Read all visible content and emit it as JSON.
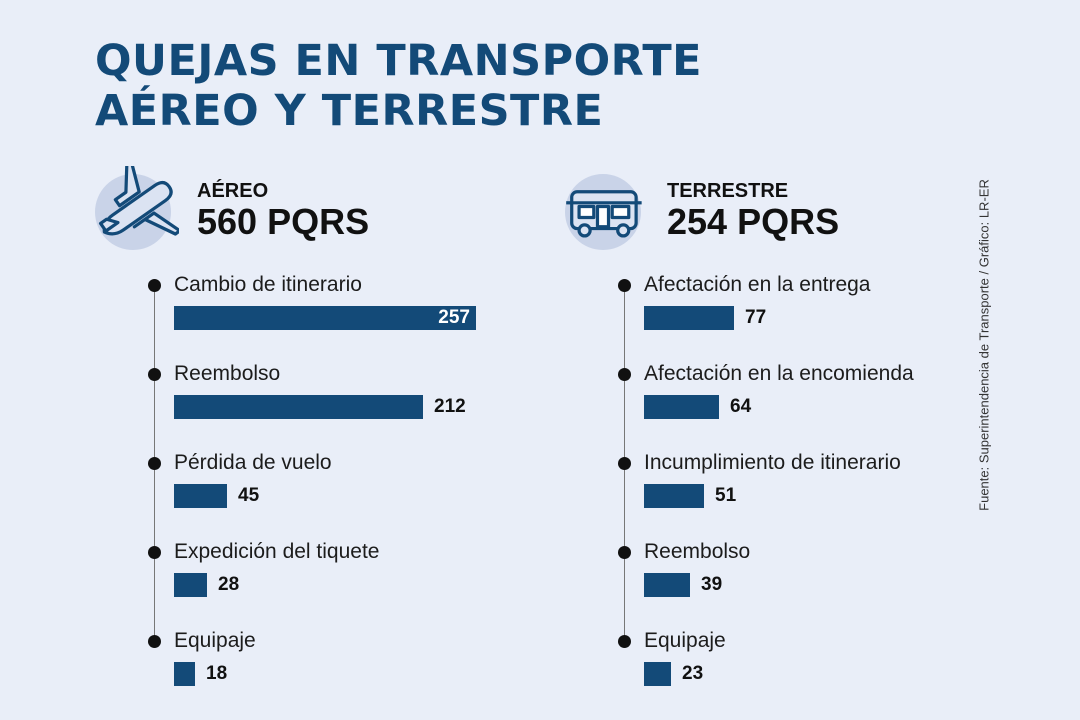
{
  "title": {
    "line1": "QUEJAS EN TRANSPORTE",
    "line2": "AÉREO Y TERRESTRE"
  },
  "source": "Fuente: Superintendencia de Transporte / Gráfico: LR-ER",
  "colors": {
    "bar": "#134a78",
    "background": "#e9eef8",
    "icon_circle": "#c9d3e8"
  },
  "panels": [
    {
      "label": "AÉREO",
      "total": "560 PQRS",
      "icon": "airplane-icon"
    },
    {
      "label": "TERRESTRE",
      "total": "254 PQRS",
      "icon": "bus-icon"
    }
  ],
  "chart_data": [
    {
      "type": "bar",
      "title": "AÉREO",
      "subtitle": "560 PQRS",
      "categories": [
        "Cambio de itinerario",
        "Reembolso",
        "Pérdida de vuelo",
        "Expedición del tiquete",
        "Equipaje"
      ],
      "values": [
        257,
        212,
        45,
        28,
        18
      ]
    },
    {
      "type": "bar",
      "title": "TERRESTRE",
      "subtitle": "254 PQRS",
      "categories": [
        "Afectación en la entrega",
        "Afectación en la encomienda",
        "Incumplimiento de itinerario",
        "Reembolso",
        "Equipaje"
      ],
      "values": [
        77,
        64,
        51,
        39,
        23
      ]
    }
  ]
}
